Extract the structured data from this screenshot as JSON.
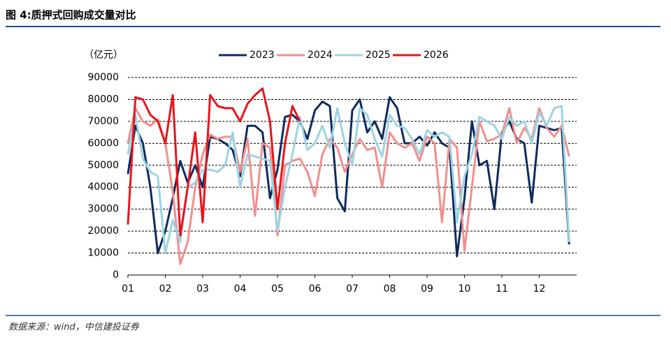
{
  "chart_data": {
    "type": "line",
    "title": "图 4:质押式回购成交量对比",
    "y_label": "（亿元）",
    "source": "数据来源：wind，中信建投证券",
    "x": [
      1.0,
      1.2,
      1.4,
      1.6,
      1.8,
      2.0,
      2.2,
      2.4,
      2.6,
      2.8,
      3.0,
      3.2,
      3.4,
      3.6,
      3.8,
      4.0,
      4.2,
      4.4,
      4.6,
      4.8,
      5.0,
      5.2,
      5.4,
      5.6,
      5.8,
      6.0,
      6.2,
      6.4,
      6.6,
      6.8,
      7.0,
      7.2,
      7.4,
      7.6,
      7.8,
      8.0,
      8.2,
      8.4,
      8.6,
      8.8,
      9.0,
      9.2,
      9.4,
      9.6,
      9.8,
      10.0,
      10.2,
      10.4,
      10.6,
      10.8,
      11.0,
      11.2,
      11.4,
      11.6,
      11.8,
      12.0,
      12.2,
      12.4,
      12.6,
      12.8
    ],
    "xlim": [
      1,
      13
    ],
    "xticks": [
      {
        "value": 1,
        "label": "01"
      },
      {
        "value": 2,
        "label": "02"
      },
      {
        "value": 3,
        "label": "03"
      },
      {
        "value": 4,
        "label": "04"
      },
      {
        "value": 5,
        "label": "05"
      },
      {
        "value": 6,
        "label": "06"
      },
      {
        "value": 7,
        "label": "07"
      },
      {
        "value": 8,
        "label": "08"
      },
      {
        "value": 9,
        "label": "09"
      },
      {
        "value": 10,
        "label": "10"
      },
      {
        "value": 11,
        "label": "11"
      },
      {
        "value": 12,
        "label": "12"
      }
    ],
    "ylim": [
      0,
      90000
    ],
    "yticks": [
      0,
      10000,
      20000,
      30000,
      40000,
      50000,
      60000,
      70000,
      80000,
      90000
    ],
    "grid": true,
    "series": [
      {
        "name": "2023",
        "color": "#0d2a5e",
        "values": [
          46000,
          68000,
          60000,
          40000,
          10000,
          20000,
          35000,
          52000,
          42000,
          50000,
          40000,
          63000,
          62000,
          60000,
          57000,
          45000,
          68000,
          68000,
          65000,
          35000,
          48000,
          72000,
          73000,
          70000,
          62000,
          75000,
          79000,
          77000,
          35000,
          29000,
          75000,
          80000,
          65000,
          70000,
          62000,
          81000,
          76000,
          60000,
          60000,
          63000,
          59000,
          65000,
          60000,
          58000,
          8500,
          35000,
          70000,
          50000,
          52000,
          30000,
          65000,
          70000,
          62000,
          60000,
          33000,
          68000,
          67000,
          66000,
          67000,
          14000
        ]
      },
      {
        "name": "2024",
        "color": "#f28e8e",
        "values": [
          60000,
          76000,
          70000,
          68000,
          71000,
          60000,
          38000,
          5000,
          15000,
          40000,
          55000,
          64000,
          62000,
          63000,
          63000,
          47000,
          62000,
          27000,
          60000,
          58000,
          18000,
          50000,
          52000,
          53000,
          47000,
          36000,
          55000,
          62000,
          58000,
          47000,
          55000,
          62000,
          57000,
          58000,
          40000,
          65000,
          60000,
          58000,
          60000,
          52000,
          63000,
          60000,
          24000,
          62000,
          58000,
          11000,
          40000,
          70000,
          61000,
          62000,
          64000,
          76000,
          60000,
          67000,
          62000,
          76000,
          67000,
          63000,
          68000,
          54000
        ]
      },
      {
        "name": "2025",
        "color": "#9dd3e3",
        "values": [
          55000,
          73000,
          53000,
          47000,
          45000,
          10000,
          25000,
          15000,
          40000,
          42000,
          48000,
          48000,
          47000,
          50000,
          65000,
          40000,
          55000,
          54000,
          53000,
          52000,
          20000,
          40000,
          55000,
          72000,
          57000,
          60000,
          68000,
          58000,
          76000,
          60000,
          50000,
          76000,
          73000,
          62000,
          54000,
          73000,
          68000,
          67000,
          62000,
          55000,
          66000,
          63000,
          65000,
          63000,
          24000,
          45000,
          55000,
          72000,
          70000,
          68000,
          62000,
          72000,
          68000,
          70000,
          60000,
          74000,
          68000,
          76000,
          77000,
          15000
        ]
      },
      {
        "name": "2026",
        "color": "#e8141b",
        "values": [
          23000,
          81000,
          80000,
          73000,
          70000,
          60000,
          82000,
          18000,
          40000,
          65000,
          24000,
          82000,
          77000,
          76000,
          76000,
          70000,
          78000,
          82000,
          85000,
          70000,
          30000,
          60000,
          77000,
          70000,
          null,
          null,
          null,
          null,
          null,
          null,
          null,
          null,
          null,
          null,
          null,
          null,
          null,
          null,
          null,
          null,
          null,
          null,
          null,
          null,
          null,
          null,
          null,
          null,
          null,
          null,
          null,
          null,
          null,
          null,
          null,
          null,
          null,
          null,
          null,
          null
        ]
      }
    ]
  }
}
